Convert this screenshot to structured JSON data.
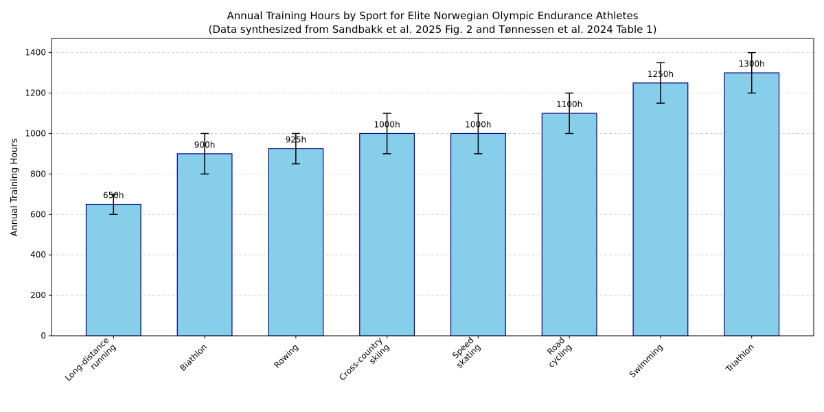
{
  "chart_data": {
    "type": "bar",
    "title": "Annual Training Hours by Sport for Elite Norwegian Olympic Endurance Athletes",
    "subtitle": "(Data synthesized from Sandbakk et al. 2025 Fig. 2 and Tønnessen et al. 2024 Table 1)",
    "xlabel": "",
    "ylabel": "Annual Training Hours",
    "categories": [
      [
        "Long-distance",
        "running"
      ],
      [
        "Biathlon"
      ],
      [
        "Rowing"
      ],
      [
        "Cross-country",
        "skiing"
      ],
      [
        "Speed",
        "skating"
      ],
      [
        "Road",
        "cycling"
      ],
      [
        "Swimming"
      ],
      [
        "Triathlon"
      ]
    ],
    "values": [
      650,
      900,
      925,
      1000,
      1000,
      1100,
      1250,
      1300
    ],
    "errors": [
      50,
      100,
      75,
      100,
      100,
      100,
      100,
      100
    ],
    "data_labels": [
      "650h",
      "900h",
      "925h",
      "1000h",
      "1000h",
      "1100h",
      "1250h",
      "1300h"
    ],
    "ylim": [
      0,
      1470
    ],
    "yticks": [
      0,
      200,
      400,
      600,
      800,
      1000,
      1200,
      1400
    ],
    "grid": true,
    "colors": {
      "bar_fill": "#87ceeb",
      "bar_edge": "#000080",
      "error_bar": "#000000",
      "grid": "#c8c8c8"
    }
  }
}
